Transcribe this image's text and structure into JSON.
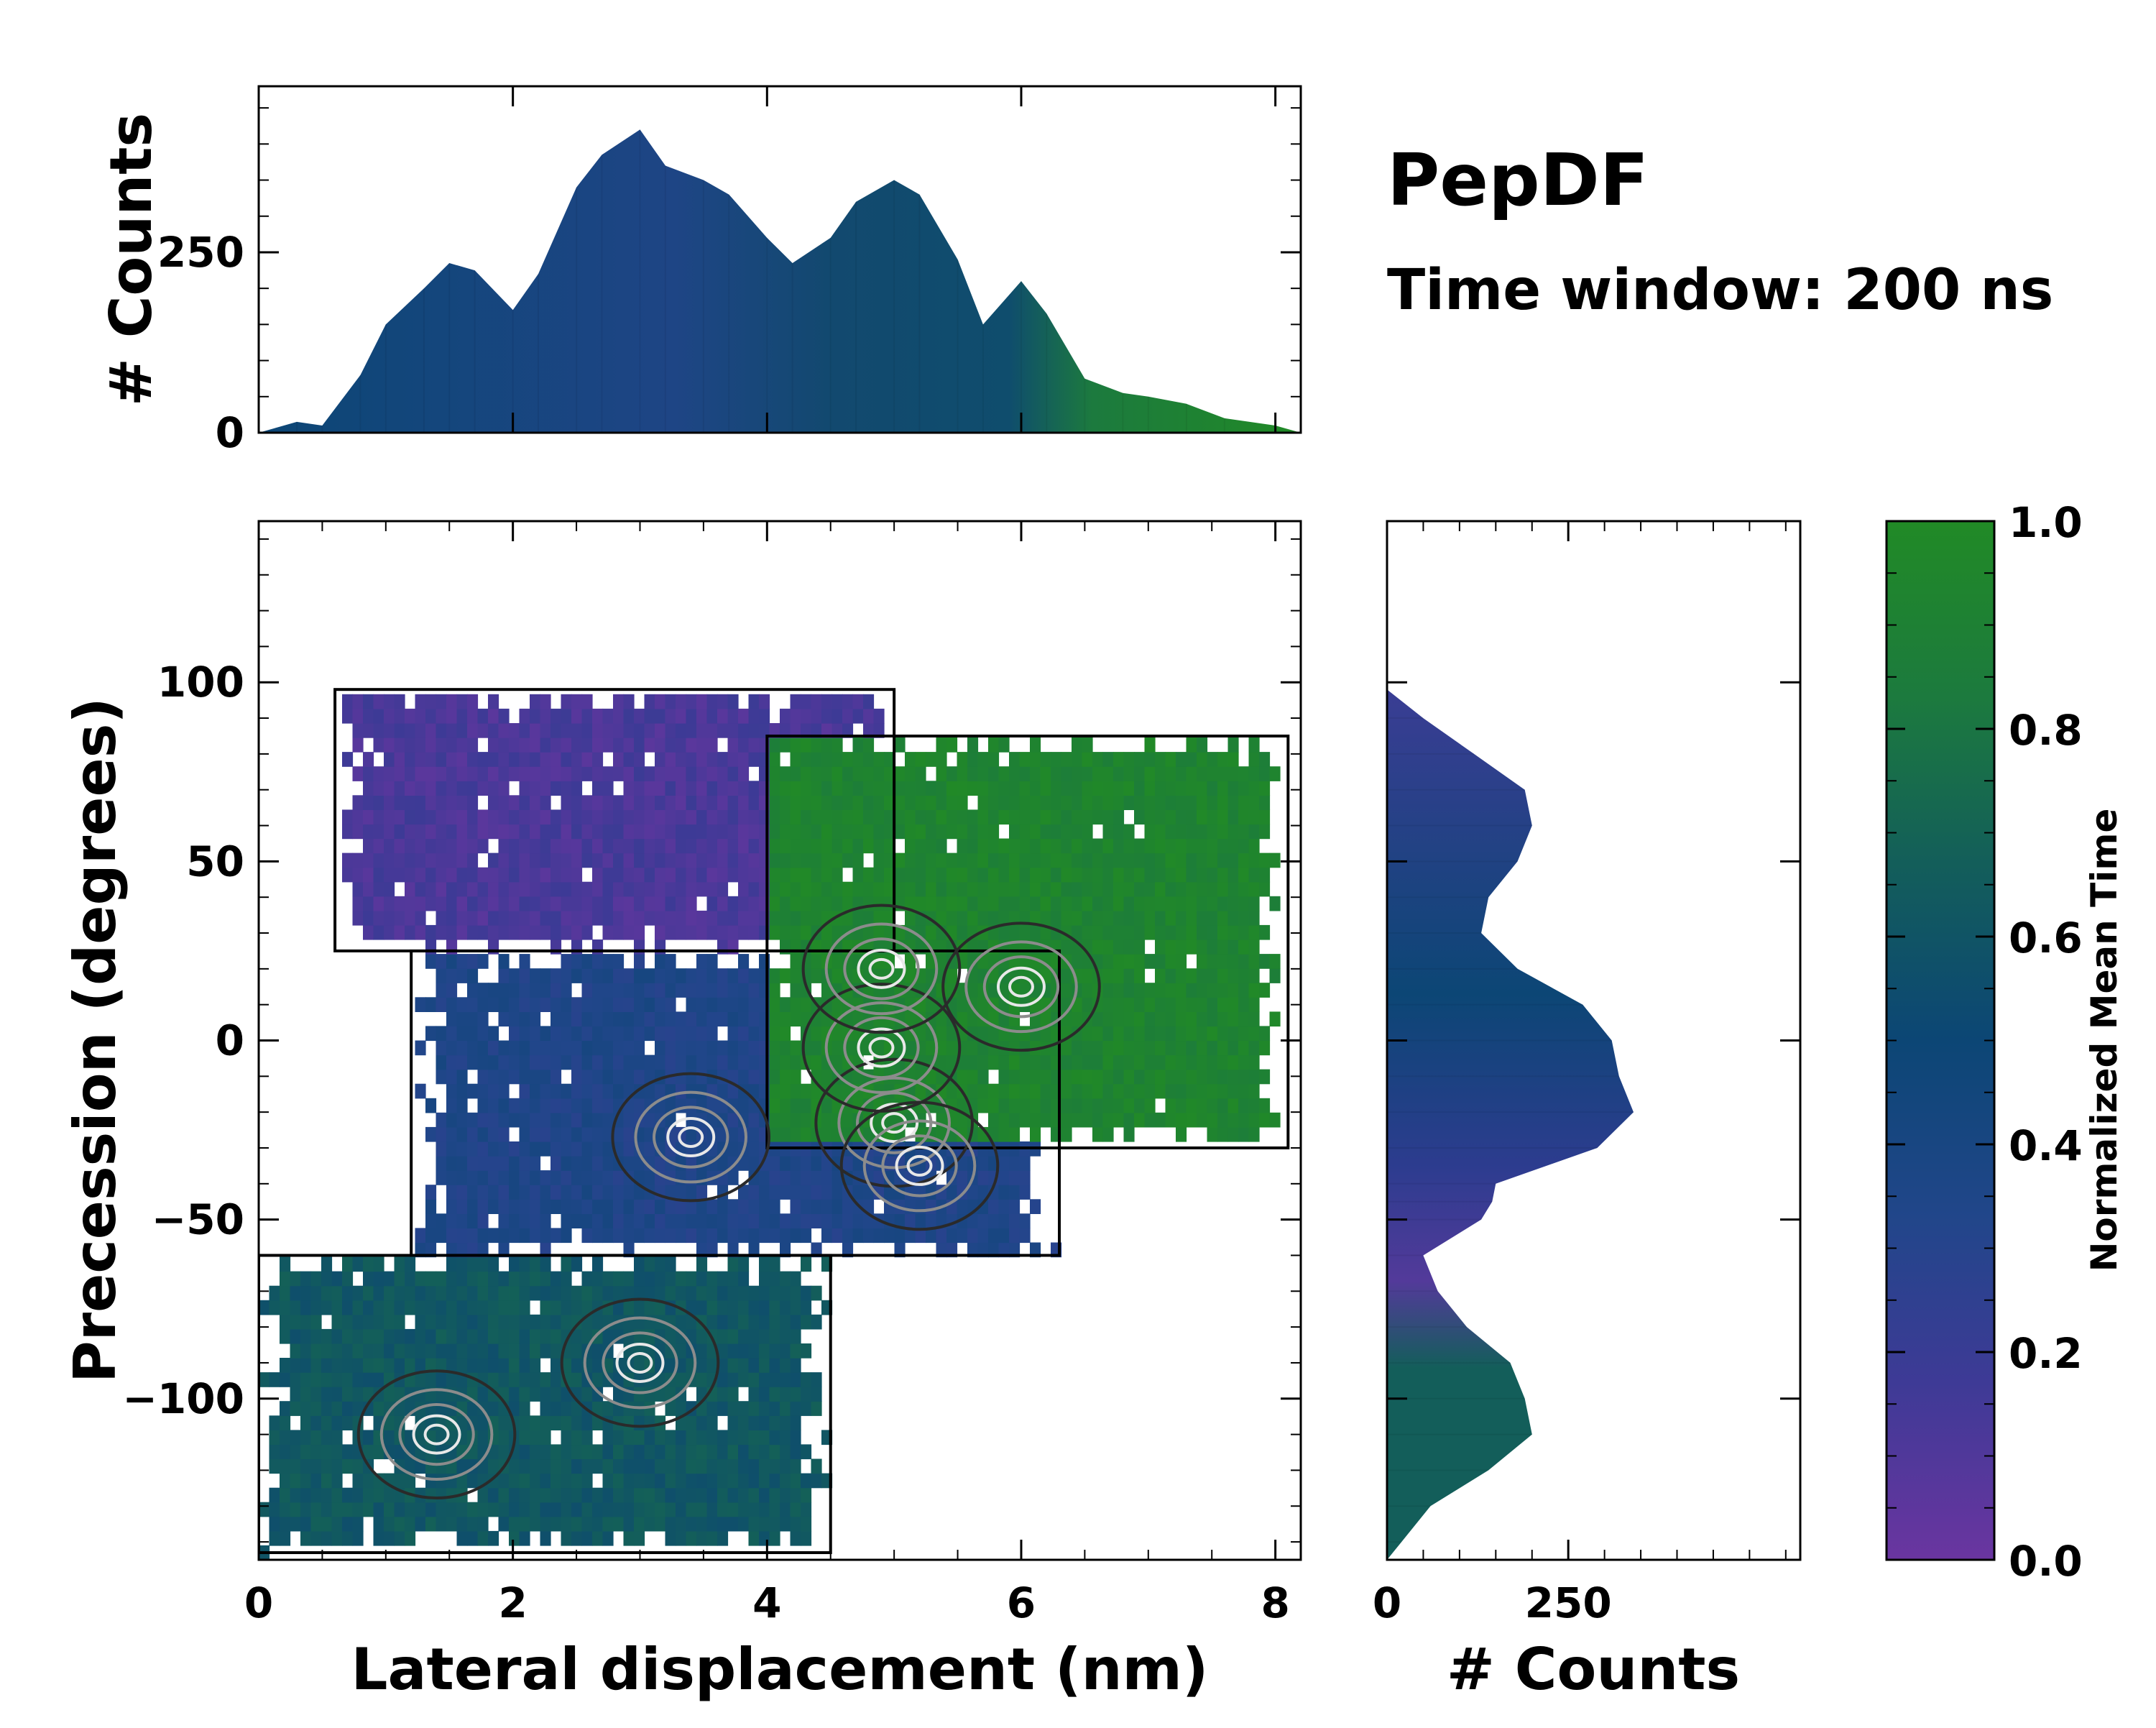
{
  "chart_data": {
    "type": "heatmap",
    "title": "PepDF",
    "subtitle": "Time window: 200 ns",
    "xlabel": "Lateral displacement (nm)",
    "ylabel": "Precession (degrees)",
    "xlim": [
      0,
      8.2
    ],
    "ylim": [
      -145,
      145
    ],
    "x_ticks": [
      0,
      2,
      4,
      6,
      8
    ],
    "x_tick_labels": [
      "0",
      "2",
      "4",
      "6",
      "8"
    ],
    "y_ticks": [
      -100,
      -50,
      0,
      50,
      100
    ],
    "y_tick_labels": [
      "−100",
      "−50",
      "0",
      "50",
      "100"
    ],
    "colorbar": {
      "label": "Normalized Mean Time",
      "range": [
        0,
        1
      ],
      "ticks": [
        0,
        0.2,
        0.4,
        0.6,
        0.8,
        1.0
      ],
      "tick_labels": [
        "0.0",
        "0.2",
        "0.4",
        "0.6",
        "0.8",
        "1.0"
      ],
      "colors": [
        "#6a35a0",
        "#3e3a96",
        "#21468a",
        "#0c4675",
        "#135e5a",
        "#1c7a3e",
        "#218a26"
      ]
    },
    "regions": [
      {
        "name": "top-left purple lobe",
        "x": [
          0.6,
          5.0
        ],
        "y": [
          25,
          98
        ],
        "mean_time": 0.12
      },
      {
        "name": "top-right green lobe",
        "x": [
          4.0,
          8.1
        ],
        "y": [
          -30,
          85
        ],
        "mean_time": 0.93
      },
      {
        "name": "central blue basin",
        "x": [
          1.2,
          6.3
        ],
        "y": [
          -60,
          25
        ],
        "mean_time": 0.35
      },
      {
        "name": "lower teal lobe",
        "x": [
          0.0,
          4.5
        ],
        "y": [
          -143,
          -60
        ],
        "mean_time": 0.62
      }
    ],
    "density_peaks": [
      {
        "x": 3.4,
        "y": -27
      },
      {
        "x": 5.0,
        "y": -23
      },
      {
        "x": 5.2,
        "y": -35
      },
      {
        "x": 4.9,
        "y": -2
      },
      {
        "x": 3.0,
        "y": -90
      },
      {
        "x": 1.4,
        "y": -110
      },
      {
        "x": 6.0,
        "y": 15
      },
      {
        "x": 4.9,
        "y": 20
      }
    ],
    "top_histogram": {
      "ylabel": "# Counts",
      "y_ticks": [
        0,
        250
      ],
      "y_tick_labels": [
        "0",
        "250"
      ],
      "ylim": [
        0,
        480
      ],
      "x": [
        0.0,
        0.3,
        0.5,
        0.8,
        1.0,
        1.3,
        1.5,
        1.7,
        2.0,
        2.2,
        2.5,
        2.7,
        3.0,
        3.2,
        3.5,
        3.7,
        4.0,
        4.2,
        4.5,
        4.7,
        5.0,
        5.2,
        5.5,
        5.7,
        6.0,
        6.2,
        6.5,
        6.8,
        7.0,
        7.3,
        7.6,
        8.0,
        8.2
      ],
      "counts": [
        0,
        15,
        10,
        80,
        150,
        200,
        235,
        225,
        170,
        220,
        340,
        385,
        420,
        370,
        350,
        330,
        270,
        235,
        270,
        320,
        350,
        330,
        240,
        150,
        210,
        165,
        75,
        55,
        50,
        40,
        20,
        10,
        0
      ]
    },
    "right_histogram": {
      "xlabel": "# Counts",
      "x_ticks": [
        0,
        250
      ],
      "x_tick_labels": [
        "0",
        "250"
      ],
      "xlim": [
        0,
        570
      ],
      "y": [
        -145,
        -140,
        -130,
        -120,
        -110,
        -100,
        -90,
        -80,
        -70,
        -60,
        -50,
        -45,
        -40,
        -30,
        -20,
        -10,
        0,
        10,
        20,
        30,
        40,
        50,
        60,
        70,
        80,
        90,
        98
      ],
      "counts": [
        0,
        20,
        60,
        140,
        200,
        190,
        170,
        110,
        70,
        50,
        130,
        145,
        150,
        290,
        340,
        320,
        310,
        270,
        180,
        130,
        140,
        180,
        200,
        190,
        120,
        50,
        0
      ]
    }
  }
}
